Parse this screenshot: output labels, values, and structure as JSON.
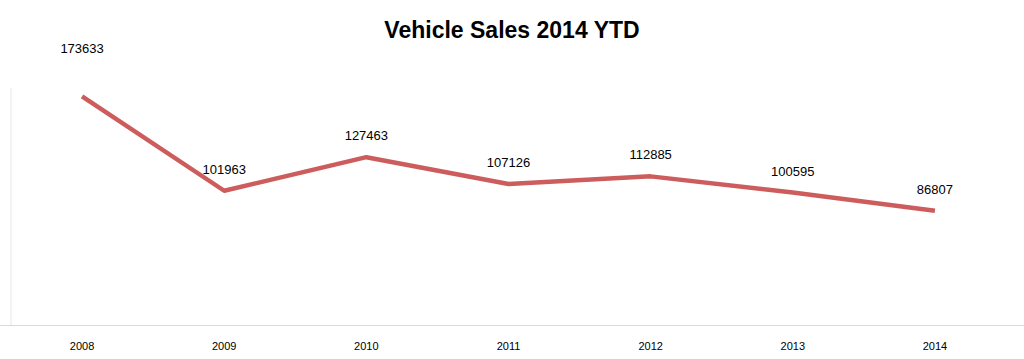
{
  "chart_data": {
    "type": "line",
    "title": "Vehicle Sales 2014 YTD",
    "categories": [
      "2008",
      "2009",
      "2010",
      "2011",
      "2012",
      "2013",
      "2014"
    ],
    "values": [
      173633,
      101963,
      127463,
      107126,
      112885,
      100595,
      86807
    ],
    "color": "#cd5c5c",
    "ylim": [
      0,
      180000
    ],
    "data_labels": true,
    "tick_labels": "x",
    "grid": false
  }
}
